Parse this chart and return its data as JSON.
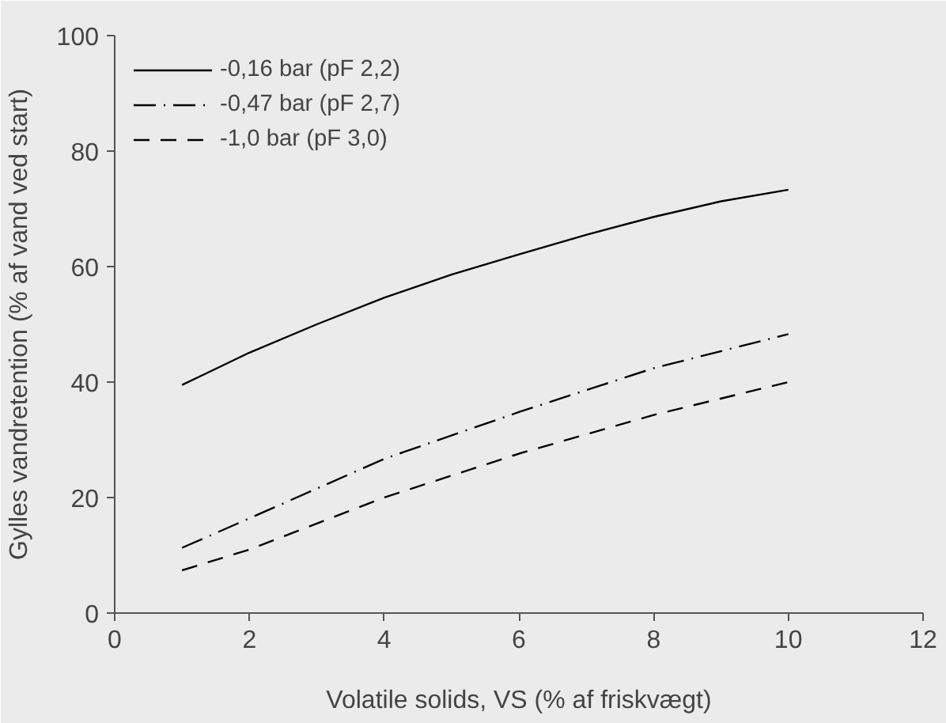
{
  "chart_data": {
    "type": "line",
    "xlabel": "Volatile solids, VS (% af friskvægt)",
    "ylabel": "Gylles vandretention (% af vand ved start)",
    "xlim": [
      0,
      12
    ],
    "xticks": [
      0,
      2,
      4,
      6,
      8,
      10,
      12
    ],
    "ylim": [
      0,
      100
    ],
    "yticks": [
      0,
      20,
      40,
      60,
      80,
      100
    ],
    "grid": false,
    "legend": "top left",
    "marker": "none",
    "series": [
      {
        "name": "-0,16 bar (pF 2,2)",
        "color": "#000000",
        "line_style": "solid",
        "x": [
          1,
          2,
          3,
          4,
          5,
          6,
          7,
          8,
          9,
          10
        ],
        "values": [
          39.5,
          45.1,
          50.0,
          54.6,
          58.6,
          62.1,
          65.5,
          68.6,
          71.3,
          73.3
        ]
      },
      {
        "name": "-0,47 bar (pF 2,7)",
        "color": "#000000",
        "line_style": "dashed",
        "x": [
          1,
          2,
          4,
          6,
          8,
          10
        ],
        "values": [
          11.3,
          16.4,
          26.7,
          34.8,
          42.4,
          48.3
        ]
      },
      {
        "name": "-1,0 bar (pF 3,0)",
        "color": "#000000",
        "line_style": "dashed",
        "x": [
          1,
          2,
          4,
          6,
          8,
          10
        ],
        "values": [
          7.4,
          11.0,
          20.0,
          27.6,
          34.3,
          40.0
        ]
      }
    ]
  }
}
